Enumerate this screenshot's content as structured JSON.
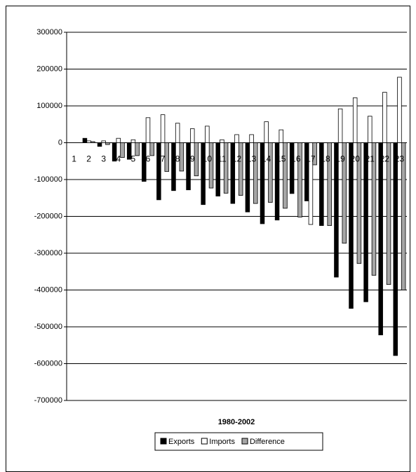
{
  "chart_data": {
    "type": "bar",
    "xlabel": "1980-2002",
    "categories": [
      "1",
      "2",
      "3",
      "4",
      "5",
      "6",
      "7",
      "8",
      "9",
      "10",
      "11",
      "12",
      "13",
      "14",
      "15",
      "16",
      "17",
      "18",
      "19",
      "20",
      "21",
      "22",
      "23"
    ],
    "series": [
      {
        "name": "Exports",
        "color": "#000000",
        "values": [
          0,
          12000,
          -10000,
          -50000,
          -45000,
          -105000,
          -155000,
          -130000,
          -128000,
          -168000,
          -145000,
          -165000,
          -188000,
          -220000,
          -210000,
          -138000,
          -158000,
          -225000,
          -365000,
          -450000,
          -432000,
          -522000,
          -578000
        ]
      },
      {
        "name": "Imports",
        "color": "#ffffff",
        "values": [
          0,
          5000,
          5000,
          12000,
          8000,
          68000,
          76000,
          53000,
          38000,
          45000,
          8000,
          22000,
          22000,
          57000,
          35000,
          0,
          -222000,
          0,
          92000,
          122000,
          72000,
          137000,
          178000
        ]
      },
      {
        "name": "Difference",
        "color": "#a6a6a6",
        "values": [
          0,
          3000,
          -5000,
          -40000,
          -35000,
          -35000,
          -78000,
          -77000,
          -90000,
          -123000,
          -137000,
          -143000,
          -165000,
          -162000,
          -178000,
          -202000,
          -60000,
          -225000,
          -273000,
          -328000,
          -360000,
          -385000,
          -400000
        ]
      }
    ],
    "ylim": [
      -700000,
      300000
    ],
    "yticks": [
      -700000,
      -600000,
      -500000,
      -400000,
      -300000,
      -200000,
      -100000,
      0,
      100000,
      200000,
      300000
    ],
    "grid": true,
    "legend": "bottom"
  }
}
